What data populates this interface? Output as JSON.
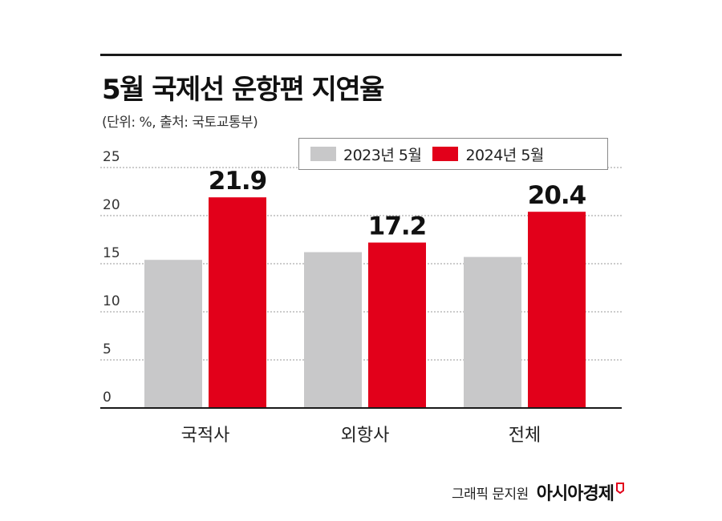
{
  "header": {
    "title": "5월 국제선 운항편 지연율",
    "subtitle": "(단위: %, 출처: 국토교통부)"
  },
  "colors": {
    "series_2023": "#c8c8c9",
    "series_2024": "#e2001a",
    "grid": "#9a9a9a",
    "axis": "#1a1a1a"
  },
  "chart_data": {
    "type": "bar",
    "title": "5월 국제선 운항편 지연율",
    "subtitle": "(단위: %, 출처: 국토교통부)",
    "categories": [
      "국적사",
      "외항사",
      "전체"
    ],
    "series": [
      {
        "name": "2023년 5월",
        "values": [
          15.4,
          16.2,
          15.7
        ],
        "labeled": false
      },
      {
        "name": "2024년 5월",
        "values": [
          21.9,
          17.2,
          20.4
        ],
        "labeled": true
      }
    ],
    "data_labels": [
      "21.9",
      "17.2",
      "20.4"
    ],
    "y_ticks": [
      0,
      5,
      10,
      15,
      20,
      25
    ],
    "ylim": [
      0,
      25
    ],
    "grid": true,
    "legend_position": "top-right"
  },
  "legend": {
    "items": [
      "2023년 5월",
      "2024년 5월"
    ]
  },
  "credit": {
    "byline": "그래픽 문지원",
    "brand": "아시아경제"
  }
}
